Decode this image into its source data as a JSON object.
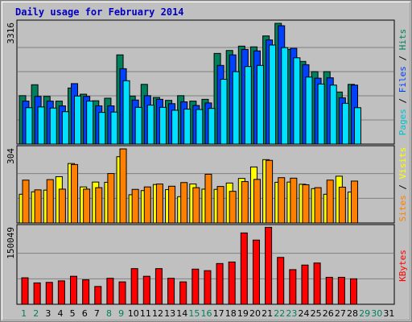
{
  "chart_data": {
    "type": "bar",
    "title": "Daily usage for February 2014",
    "days": [
      "1",
      "2",
      "3",
      "4",
      "5",
      "6",
      "7",
      "8",
      "9",
      "10",
      "11",
      "12",
      "13",
      "14",
      "15",
      "16",
      "17",
      "18",
      "19",
      "20",
      "21",
      "22",
      "23",
      "24",
      "25",
      "26",
      "27",
      "28",
      "29",
      "30",
      "31"
    ],
    "weekend_days": [
      "1",
      "2",
      "8",
      "9",
      "15",
      "16",
      "22",
      "23",
      "29",
      "30"
    ],
    "hits_files_pages": {
      "ymax": 3316,
      "ymax_label": "3316",
      "series": [
        {
          "name": "Hits",
          "color": "#00805c",
          "values": [
            1330,
            1630,
            1310,
            1180,
            1540,
            1370,
            1190,
            1260,
            2450,
            1320,
            1640,
            1280,
            1200,
            1330,
            1180,
            1230,
            2490,
            2570,
            2690,
            2670,
            2970,
            3316,
            2600,
            2270,
            1990,
            1990,
            1430,
            1640
          ]
        },
        {
          "name": "Files",
          "color": "#0040ff",
          "values": [
            1180,
            1310,
            1180,
            1050,
            1660,
            1310,
            1050,
            1050,
            2070,
            1210,
            1330,
            1230,
            1110,
            1160,
            1060,
            1130,
            2160,
            2450,
            2600,
            2560,
            2860,
            3250,
            2630,
            2180,
            1810,
            1820,
            1270,
            1620
          ]
        },
        {
          "name": "Pages",
          "color": "#00e0ff",
          "values": [
            1000,
            1020,
            990,
            890,
            1320,
            1180,
            870,
            880,
            1740,
            1010,
            1070,
            1010,
            930,
            960,
            950,
            980,
            1780,
            1990,
            2130,
            2160,
            2720,
            2650,
            2370,
            1840,
            1650,
            1620,
            1120,
            1000
          ]
        }
      ],
      "axis_label_parts": [
        {
          "text": "Pages",
          "color": "#00c0d0"
        },
        {
          "text": " / ",
          "color": "#000000"
        },
        {
          "text": "Files",
          "color": "#0040ff"
        },
        {
          "text": " / ",
          "color": "#000000"
        },
        {
          "text": "Hits",
          "color": "#00805c"
        }
      ]
    },
    "sites_visits": {
      "ymax": 304,
      "ymax_label": "304",
      "series": [
        {
          "name": "Visits",
          "color": "#ffff00",
          "values": [
            118,
            128,
            135,
            190,
            244,
            148,
            168,
            167,
            272,
            116,
            133,
            158,
            137,
            108,
            160,
            139,
            138,
            164,
            183,
            230,
            260,
            167,
            168,
            159,
            141,
            118,
            192,
            127
          ]
        },
        {
          "name": "Sites",
          "color": "#ff8000",
          "values": [
            176,
            136,
            178,
            139,
            240,
            139,
            145,
            203,
            304,
            138,
            148,
            160,
            151,
            166,
            145,
            200,
            150,
            130,
            170,
            179,
            257,
            186,
            184,
            157,
            145,
            176,
            147,
            172
          ]
        }
      ],
      "axis_label_parts": [
        {
          "text": "Sites",
          "color": "#ff8000"
        },
        {
          "text": " / ",
          "color": "#000000"
        },
        {
          "text": "Visits",
          "color": "#ffff00"
        }
      ]
    },
    "kbytes": {
      "ymax": 150049,
      "ymax_label": "150049",
      "series": [
        {
          "name": "KBytes",
          "color": "#ff0000",
          "values": [
            52000,
            42000,
            43000,
            46000,
            55000,
            48000,
            35000,
            51000,
            44000,
            70000,
            55000,
            70000,
            51000,
            44000,
            69000,
            66000,
            80000,
            83000,
            140000,
            126000,
            151000,
            92000,
            68000,
            77000,
            81000,
            53000,
            53000,
            50000
          ]
        }
      ],
      "axis_label_parts": [
        {
          "text": "KBytes",
          "color": "#ff0000"
        }
      ]
    }
  }
}
